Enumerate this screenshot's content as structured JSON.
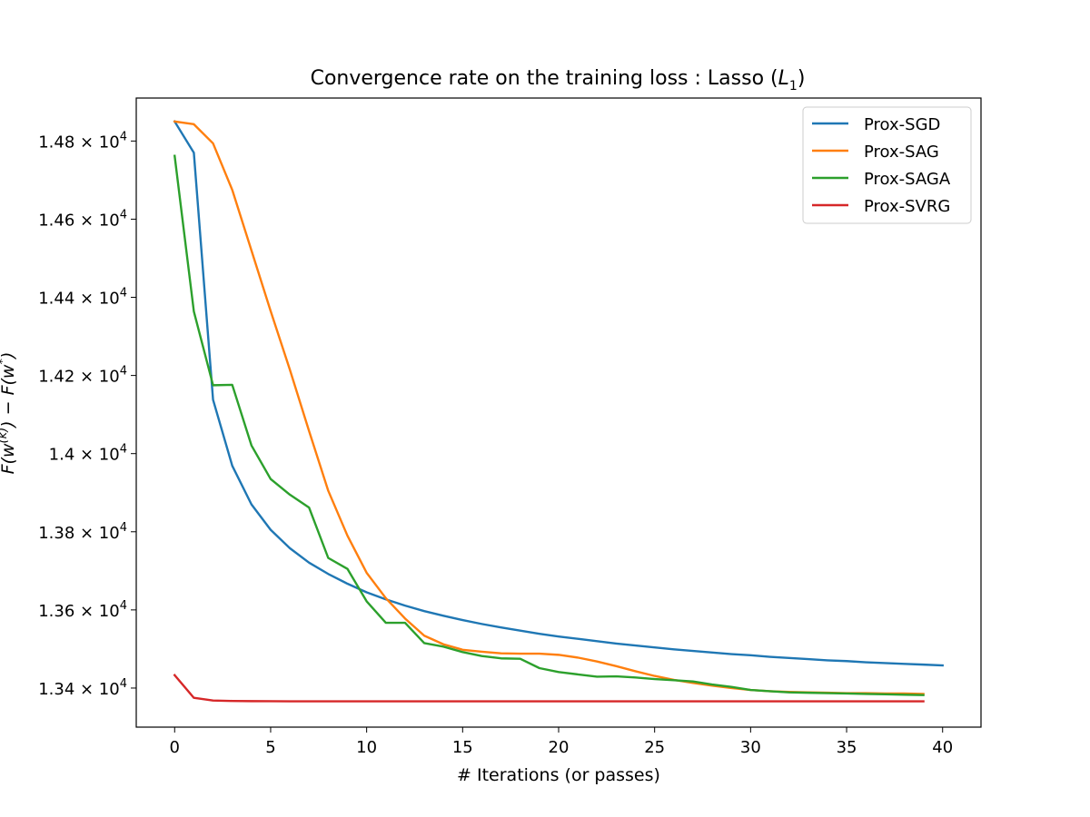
{
  "chart_data": {
    "type": "line",
    "title": "Convergence rate on the training loss : Lasso (L1)",
    "title_parts": {
      "main": "Convergence rate on the training loss : Lasso (",
      "var": "L",
      "sub": "1",
      "close": ")"
    },
    "xlabel": "# Iterations (or passes)",
    "ylabel": "F(w(k)) − F(w*)",
    "ylabel_parts": {
      "F1": "F(w",
      "sup1": "(k)",
      "mid": ") − F(w",
      "sup2": "*",
      "end": ")"
    },
    "xlim": [
      -2,
      42
    ],
    "ylim": [
      13300,
      14910
    ],
    "x_ticks": [
      0,
      5,
      10,
      15,
      20,
      25,
      30,
      35,
      40
    ],
    "x_tick_labels": [
      "0",
      "5",
      "10",
      "15",
      "20",
      "25",
      "30",
      "35",
      "40"
    ],
    "y_ticks": [
      13400,
      13600,
      13800,
      14000,
      14200,
      14400,
      14600,
      14800
    ],
    "y_tick_mantissas": [
      "1.34",
      "1.36",
      "1.38",
      "1.4",
      "1.42",
      "1.44",
      "1.46",
      "1.48"
    ],
    "y_tick_times": "×",
    "y_tick_base": "10",
    "y_tick_exponent": "4",
    "grid": false,
    "legend_position": "top-right",
    "series": [
      {
        "name": "Prox-SGD",
        "color": "#1f77b4",
        "x": [
          0,
          1,
          2,
          3,
          4,
          5,
          6,
          7,
          8,
          9,
          10,
          11,
          12,
          13,
          14,
          15,
          16,
          17,
          18,
          19,
          20,
          21,
          22,
          23,
          24,
          25,
          26,
          27,
          28,
          29,
          30,
          31,
          32,
          33,
          34,
          35,
          36,
          37,
          38,
          39,
          40
        ],
        "values": [
          14850,
          14770,
          14138,
          13969,
          13870,
          13805,
          13758,
          13721,
          13692,
          13667,
          13645,
          13627,
          13611,
          13597,
          13585,
          13574,
          13564,
          13555,
          13547,
          13539,
          13532,
          13526,
          13520,
          13514,
          13509,
          13504,
          13499,
          13495,
          13491,
          13487,
          13484,
          13480,
          13477,
          13474,
          13471,
          13469,
          13466,
          13464,
          13462,
          13460,
          13458
        ]
      },
      {
        "name": "Prox-SAG",
        "color": "#ff7f0e",
        "x": [
          0,
          1,
          2,
          3,
          4,
          5,
          6,
          7,
          8,
          9,
          10,
          11,
          12,
          13,
          14,
          15,
          16,
          17,
          18,
          19,
          20,
          21,
          22,
          23,
          24,
          25,
          26,
          27,
          28,
          29,
          30,
          31,
          32,
          33,
          34,
          35,
          36,
          37,
          38,
          39
        ],
        "values": [
          14850,
          14843,
          14794,
          14675,
          14520,
          14365,
          14215,
          14058,
          13905,
          13790,
          13695,
          13630,
          13578,
          13534,
          13512,
          13498,
          13493,
          13489,
          13488,
          13488,
          13485,
          13478,
          13468,
          13456,
          13443,
          13431,
          13421,
          13413,
          13406,
          13400,
          13395,
          13392,
          13390,
          13389,
          13388,
          13387,
          13387,
          13386,
          13386,
          13385
        ]
      },
      {
        "name": "Prox-SAGA",
        "color": "#2ca02c",
        "x": [
          0,
          1,
          2,
          3,
          4,
          5,
          6,
          7,
          8,
          9,
          10,
          11,
          12,
          13,
          14,
          15,
          16,
          17,
          18,
          19,
          20,
          21,
          22,
          23,
          24,
          25,
          26,
          27,
          28,
          29,
          30,
          31,
          32,
          33,
          34,
          35,
          36,
          37,
          38,
          39
        ],
        "values": [
          14762,
          14364,
          14175,
          14176,
          14021,
          13935,
          13895,
          13862,
          13733,
          13705,
          13622,
          13567,
          13567,
          13515,
          13506,
          13492,
          13482,
          13476,
          13475,
          13451,
          13441,
          13435,
          13429,
          13430,
          13427,
          13423,
          13420,
          13417,
          13409,
          13403,
          13395,
          13392,
          13389,
          13388,
          13387,
          13386,
          13385,
          13384,
          13383,
          13382
        ]
      },
      {
        "name": "Prox-SVRG",
        "color": "#d62728",
        "x": [
          0,
          1,
          2,
          3,
          4,
          5,
          6,
          7,
          8,
          9,
          10,
          11,
          12,
          13,
          14,
          15,
          16,
          17,
          18,
          19,
          20,
          21,
          22,
          23,
          24,
          25,
          26,
          27,
          28,
          29,
          30,
          31,
          32,
          33,
          34,
          35,
          36,
          37,
          38,
          39
        ],
        "values": [
          13433,
          13375,
          13368,
          13367,
          13366.5,
          13366.3,
          13366.1,
          13366,
          13366,
          13366,
          13366,
          13366,
          13366,
          13366,
          13366,
          13366,
          13366,
          13366,
          13366,
          13366,
          13366,
          13366,
          13366,
          13366,
          13366,
          13366,
          13366,
          13366,
          13366,
          13366,
          13366,
          13366,
          13366,
          13366,
          13366,
          13366,
          13366,
          13366,
          13366,
          13366
        ]
      }
    ]
  }
}
